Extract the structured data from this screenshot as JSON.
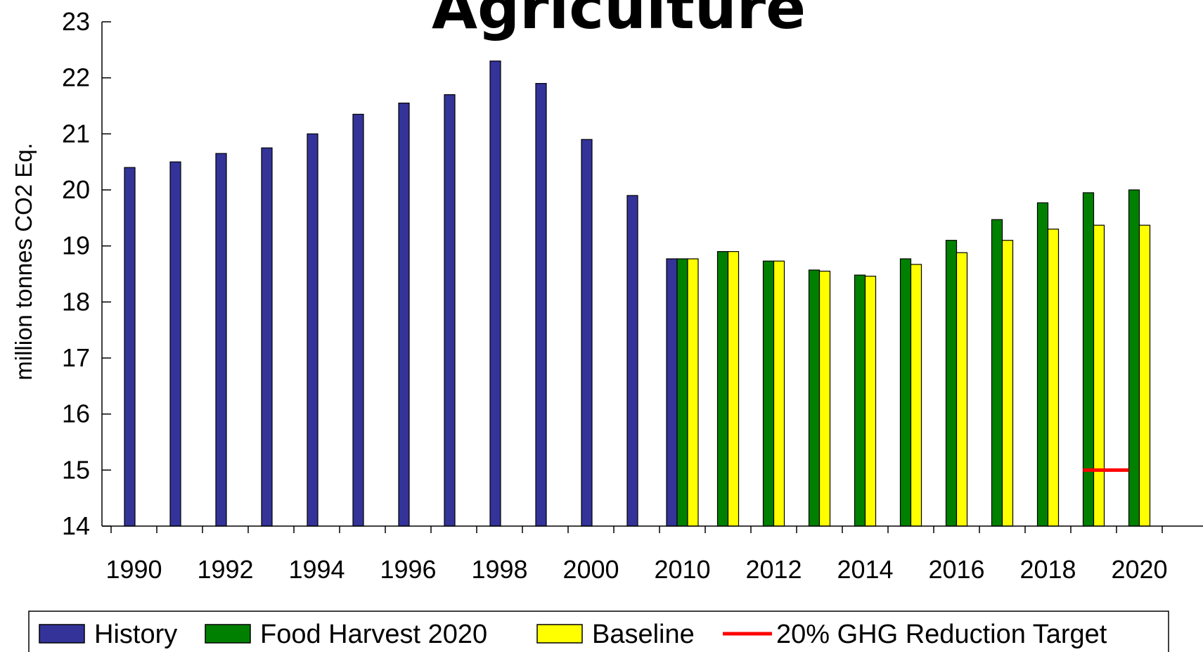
{
  "chart_data": {
    "type": "bar",
    "title": "Agriculture",
    "ylabel": "million tonnes CO2 Eq.",
    "xlabel": "",
    "ylim": [
      14,
      23
    ],
    "yticks": [
      "14",
      "15",
      "16",
      "17",
      "18",
      "19",
      "20",
      "21",
      "22",
      "23"
    ],
    "categories": [
      "1990",
      "1991",
      "1992",
      "1993",
      "1994",
      "1995",
      "1996",
      "1997",
      "1998",
      "1999",
      "2000",
      "2001",
      "2010",
      "2011",
      "2012",
      "2013",
      "2014",
      "2015",
      "2016",
      "2017",
      "2018",
      "2019",
      "2020"
    ],
    "xtick_labels": [
      "1990",
      "1992",
      "1994",
      "1996",
      "1998",
      "2000",
      "2010",
      "2012",
      "2014",
      "2016",
      "2018",
      "2020"
    ],
    "series": [
      {
        "name": "History",
        "color": "#333399",
        "values": [
          20.4,
          20.5,
          20.65,
          20.75,
          21.0,
          21.35,
          21.55,
          21.7,
          22.3,
          21.9,
          20.9,
          19.9,
          18.77,
          null,
          null,
          null,
          null,
          null,
          null,
          null,
          null,
          null,
          null
        ]
      },
      {
        "name": "Food Harvest 2020",
        "color": "#008000",
        "values": [
          null,
          null,
          null,
          null,
          null,
          null,
          null,
          null,
          null,
          null,
          null,
          null,
          18.77,
          18.9,
          18.73,
          18.57,
          18.48,
          18.77,
          19.1,
          19.47,
          19.77,
          19.95,
          20.0
        ]
      },
      {
        "name": "Baseline",
        "color": "#ffff00",
        "values": [
          null,
          null,
          null,
          null,
          null,
          null,
          null,
          null,
          null,
          null,
          null,
          null,
          18.77,
          18.9,
          18.73,
          18.55,
          18.46,
          18.67,
          18.88,
          19.1,
          19.3,
          19.37,
          19.37
        ]
      }
    ],
    "target_line": {
      "name": "20% GHG Reduction Target",
      "color": "#ff0000",
      "value": 15,
      "from": "2019",
      "to": "2020"
    },
    "grid": false,
    "legend_position": "bottom"
  }
}
